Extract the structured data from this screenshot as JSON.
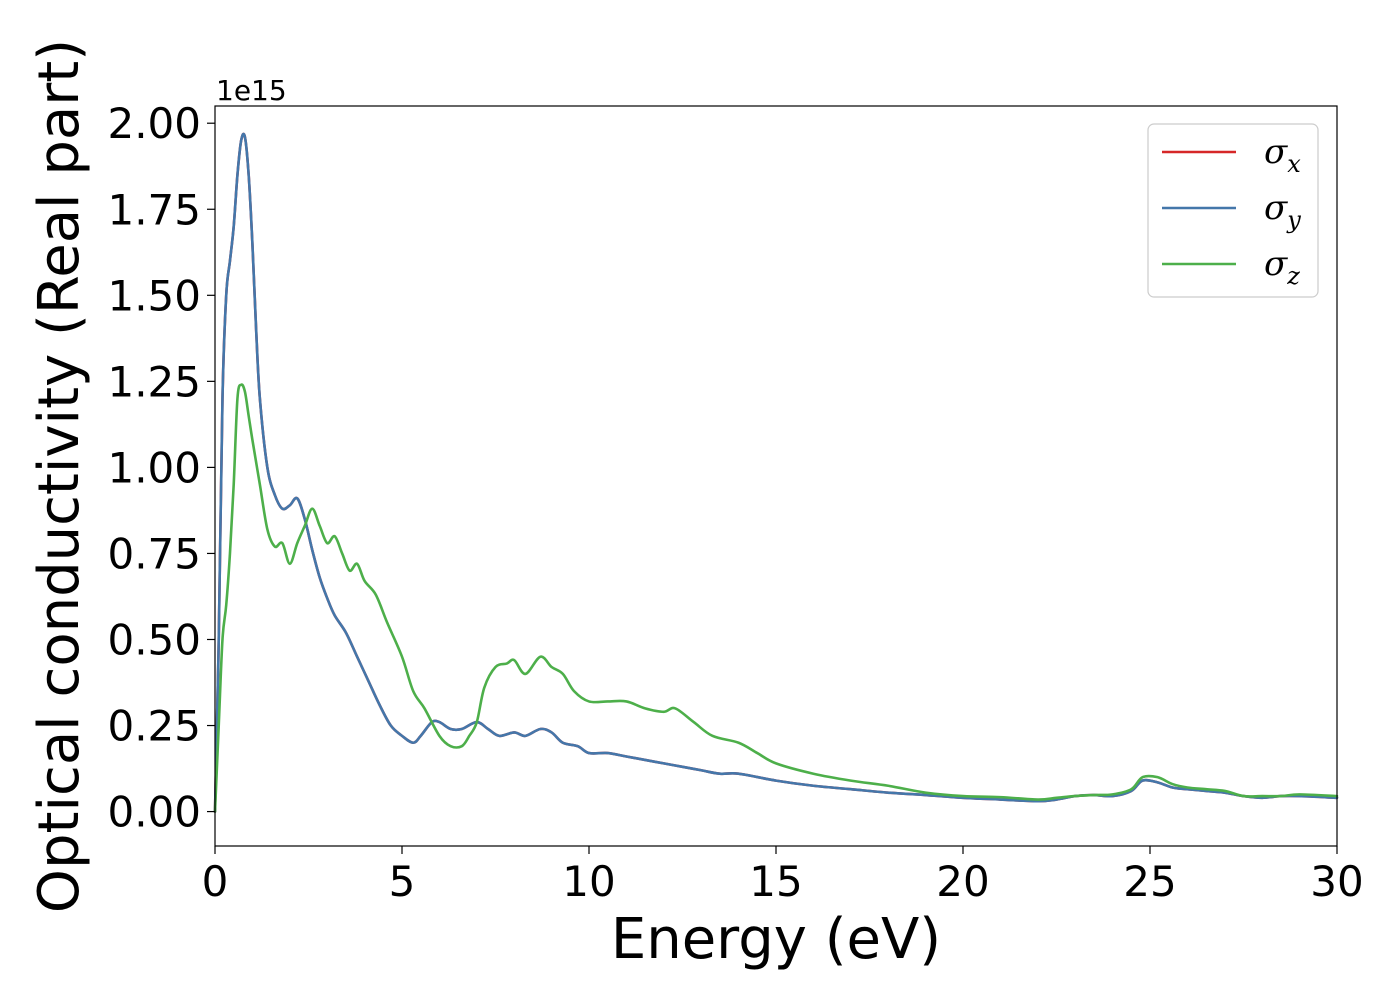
{
  "chart_data": {
    "type": "line",
    "title": "",
    "xlabel": "Energy (eV)",
    "ylabel": "Optical conductivity (Real part)",
    "y_offset_text": "1e15",
    "y_scale_factor": 1000000000000000.0,
    "xlim": [
      0,
      30
    ],
    "ylim": [
      -0.1,
      2.05
    ],
    "xticks": [
      0,
      5,
      10,
      15,
      20,
      25,
      30
    ],
    "xtick_labels": [
      "0",
      "5",
      "10",
      "15",
      "20",
      "25",
      "30"
    ],
    "yticks": [
      0.0,
      0.25,
      0.5,
      0.75,
      1.0,
      1.25,
      1.5,
      1.75,
      2.0
    ],
    "ytick_labels": [
      "0.00",
      "0.25",
      "0.50",
      "0.75",
      "1.00",
      "1.25",
      "1.50",
      "1.75",
      "2.00"
    ],
    "grid": false,
    "legend_position": "upper right",
    "series": [
      {
        "name": "σx",
        "symbol": "σ",
        "subscript": "x",
        "color": "#d62728",
        "x": [
          0,
          0.1,
          0.2,
          0.3,
          0.4,
          0.5,
          0.6,
          0.7,
          0.8,
          0.9,
          1.0,
          1.1,
          1.2,
          1.4,
          1.6,
          1.8,
          2.0,
          2.2,
          2.4,
          2.6,
          2.8,
          3.0,
          3.2,
          3.5,
          3.8,
          4.1,
          4.4,
          4.7,
          5.0,
          5.3,
          5.5,
          5.8,
          6.0,
          6.3,
          6.6,
          7.0,
          7.3,
          7.6,
          8.0,
          8.3,
          8.7,
          9.0,
          9.3,
          9.7,
          10.0,
          10.5,
          11.0,
          11.5,
          12.0,
          12.5,
          13.0,
          13.5,
          14.0,
          15.0,
          16.0,
          17.0,
          18.0,
          19.0,
          20.0,
          21.0,
          22.0,
          22.5,
          23.0,
          23.5,
          24.0,
          24.5,
          24.8,
          25.2,
          25.6,
          26.0,
          26.5,
          27.0,
          27.5,
          28.0,
          28.5,
          29.0,
          30.0
        ],
        "y": [
          0,
          0.5,
          1.2,
          1.5,
          1.6,
          1.7,
          1.85,
          1.95,
          1.96,
          1.85,
          1.65,
          1.4,
          1.2,
          1.0,
          0.92,
          0.88,
          0.89,
          0.91,
          0.85,
          0.76,
          0.68,
          0.62,
          0.57,
          0.52,
          0.45,
          0.38,
          0.31,
          0.25,
          0.22,
          0.2,
          0.22,
          0.26,
          0.26,
          0.24,
          0.24,
          0.26,
          0.24,
          0.22,
          0.23,
          0.22,
          0.24,
          0.23,
          0.2,
          0.19,
          0.17,
          0.17,
          0.16,
          0.15,
          0.14,
          0.13,
          0.12,
          0.11,
          0.11,
          0.09,
          0.075,
          0.065,
          0.055,
          0.048,
          0.04,
          0.035,
          0.03,
          0.035,
          0.045,
          0.048,
          0.045,
          0.06,
          0.09,
          0.085,
          0.07,
          0.065,
          0.06,
          0.055,
          0.045,
          0.04,
          0.045,
          0.045,
          0.04
        ]
      },
      {
        "name": "σy",
        "symbol": "σ",
        "subscript": "y",
        "color": "#4477aa",
        "x": [
          0,
          0.1,
          0.2,
          0.3,
          0.4,
          0.5,
          0.6,
          0.7,
          0.8,
          0.9,
          1.0,
          1.1,
          1.2,
          1.4,
          1.6,
          1.8,
          2.0,
          2.2,
          2.4,
          2.6,
          2.8,
          3.0,
          3.2,
          3.5,
          3.8,
          4.1,
          4.4,
          4.7,
          5.0,
          5.3,
          5.5,
          5.8,
          6.0,
          6.3,
          6.6,
          7.0,
          7.3,
          7.6,
          8.0,
          8.3,
          8.7,
          9.0,
          9.3,
          9.7,
          10.0,
          10.5,
          11.0,
          11.5,
          12.0,
          12.5,
          13.0,
          13.5,
          14.0,
          15.0,
          16.0,
          17.0,
          18.0,
          19.0,
          20.0,
          21.0,
          22.0,
          22.5,
          23.0,
          23.5,
          24.0,
          24.5,
          24.8,
          25.2,
          25.6,
          26.0,
          26.5,
          27.0,
          27.5,
          28.0,
          28.5,
          29.0,
          30.0
        ],
        "y": [
          0,
          0.5,
          1.2,
          1.5,
          1.6,
          1.7,
          1.85,
          1.95,
          1.96,
          1.85,
          1.65,
          1.4,
          1.2,
          1.0,
          0.92,
          0.88,
          0.89,
          0.91,
          0.85,
          0.76,
          0.68,
          0.62,
          0.57,
          0.52,
          0.45,
          0.38,
          0.31,
          0.25,
          0.22,
          0.2,
          0.22,
          0.26,
          0.26,
          0.24,
          0.24,
          0.26,
          0.24,
          0.22,
          0.23,
          0.22,
          0.24,
          0.23,
          0.2,
          0.19,
          0.17,
          0.17,
          0.16,
          0.15,
          0.14,
          0.13,
          0.12,
          0.11,
          0.11,
          0.09,
          0.075,
          0.065,
          0.055,
          0.048,
          0.04,
          0.035,
          0.03,
          0.035,
          0.045,
          0.048,
          0.045,
          0.06,
          0.09,
          0.085,
          0.07,
          0.065,
          0.06,
          0.055,
          0.045,
          0.04,
          0.045,
          0.045,
          0.04
        ]
      },
      {
        "name": "σz",
        "symbol": "σ",
        "subscript": "z",
        "color": "#4daf4a",
        "x": [
          0,
          0.1,
          0.2,
          0.3,
          0.4,
          0.5,
          0.6,
          0.7,
          0.8,
          0.9,
          1.0,
          1.2,
          1.4,
          1.6,
          1.8,
          2.0,
          2.2,
          2.4,
          2.6,
          2.8,
          3.0,
          3.2,
          3.4,
          3.6,
          3.8,
          4.0,
          4.3,
          4.6,
          5.0,
          5.3,
          5.6,
          6.0,
          6.3,
          6.6,
          6.8,
          7.0,
          7.2,
          7.5,
          7.8,
          8.0,
          8.3,
          8.7,
          9.0,
          9.3,
          9.6,
          10.0,
          10.5,
          11.0,
          11.5,
          12.0,
          12.3,
          12.8,
          13.3,
          14.0,
          14.5,
          15.0,
          16.0,
          17.0,
          18.0,
          19.0,
          20.0,
          21.0,
          22.0,
          22.5,
          23.0,
          23.5,
          24.0,
          24.5,
          24.8,
          25.2,
          25.6,
          26.0,
          26.5,
          27.0,
          27.5,
          28.0,
          28.5,
          29.0,
          30.0
        ],
        "y": [
          0,
          0.25,
          0.5,
          0.6,
          0.75,
          0.95,
          1.2,
          1.24,
          1.22,
          1.15,
          1.08,
          0.95,
          0.82,
          0.77,
          0.78,
          0.72,
          0.78,
          0.83,
          0.88,
          0.83,
          0.78,
          0.8,
          0.75,
          0.7,
          0.72,
          0.67,
          0.63,
          0.55,
          0.45,
          0.35,
          0.3,
          0.22,
          0.19,
          0.19,
          0.22,
          0.26,
          0.36,
          0.42,
          0.43,
          0.44,
          0.4,
          0.45,
          0.42,
          0.4,
          0.35,
          0.32,
          0.32,
          0.32,
          0.3,
          0.29,
          0.3,
          0.26,
          0.22,
          0.2,
          0.17,
          0.14,
          0.11,
          0.09,
          0.075,
          0.055,
          0.045,
          0.042,
          0.035,
          0.04,
          0.045,
          0.048,
          0.05,
          0.065,
          0.1,
          0.1,
          0.08,
          0.07,
          0.065,
          0.06,
          0.045,
          0.045,
          0.045,
          0.05,
          0.045
        ]
      }
    ]
  }
}
